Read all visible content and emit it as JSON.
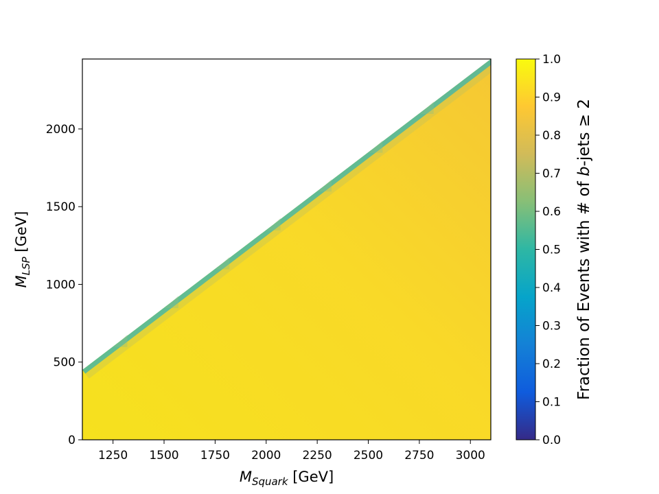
{
  "chart_data": {
    "type": "heatmap",
    "title": "",
    "xlabel": {
      "main": "M",
      "sub": "Squark",
      "unit": " [GeV]"
    },
    "ylabel": {
      "main": "M",
      "sub": "LSP",
      "unit": " [GeV]"
    },
    "colorbar_label": {
      "before": "Fraction of Events with # of ",
      "italic": "b",
      "after": "-jets  ≥ 2"
    },
    "xlim": [
      1100,
      3100
    ],
    "ylim": [
      0,
      2450
    ],
    "colorbar_lim": [
      0.0,
      1.0
    ],
    "x_ticks": [
      "1250",
      "1500",
      "1750",
      "2000",
      "2250",
      "2500",
      "2750",
      "3000"
    ],
    "x_tick_values": [
      1250,
      1500,
      1750,
      2000,
      2250,
      2500,
      2750,
      3000
    ],
    "y_ticks": [
      "0",
      "500",
      "1000",
      "1500",
      "2000"
    ],
    "y_tick_values": [
      0,
      500,
      1000,
      1500,
      2000
    ],
    "colorbar_ticks": [
      "0.0",
      "0.1",
      "0.2",
      "0.3",
      "0.4",
      "0.5",
      "0.6",
      "0.7",
      "0.8",
      "0.9",
      "1.0"
    ],
    "colorbar_tick_values": [
      0.0,
      0.1,
      0.2,
      0.3,
      0.4,
      0.5,
      0.6,
      0.7,
      0.8,
      0.9,
      1.0
    ],
    "colormap": [
      "#352a87",
      "#0f5cdd",
      "#1481d6",
      "#06a4ca",
      "#2eb7a4",
      "#87bf77",
      "#d1bb59",
      "#fec832",
      "#f9fb0e"
    ],
    "diagonal_boundary": [
      [
        1100,
        450
      ],
      [
        3100,
        2450
      ]
    ],
    "region_value": 0.93,
    "edge_value": 0.45
  }
}
